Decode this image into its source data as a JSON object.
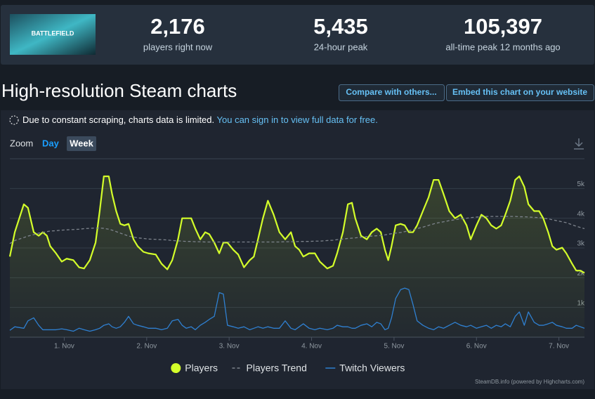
{
  "header": {
    "logo_text": "BATTLEFIELD",
    "stats": [
      {
        "value": "2,176",
        "label": "players right now"
      },
      {
        "value": "5,435",
        "label": "24-hour peak"
      },
      {
        "value": "105,397",
        "label": "all-time peak 12 months ago"
      }
    ]
  },
  "section_title": "High-resolution Steam charts",
  "buttons": [
    "Compare with others...",
    "Embed this chart on your website"
  ],
  "notice": {
    "text": "Due to constant scraping, charts data is limited.",
    "link": "You can sign in to view full data for free."
  },
  "zoom": {
    "label": "Zoom",
    "options": [
      "Day",
      "Week"
    ]
  },
  "chart_data": {
    "type": "line",
    "grid": true,
    "credit": "SteamDB.info (powered by Highcharts.com)",
    "x": [
      0.34,
      0.4,
      0.51,
      0.56,
      0.63,
      0.69,
      0.74,
      0.79,
      0.83,
      0.9,
      0.97,
      1.03,
      1.11,
      1.18,
      1.24,
      1.31,
      1.38,
      1.43,
      1.48,
      1.54,
      1.58,
      1.63,
      1.68,
      1.73,
      1.78,
      1.84,
      1.89,
      1.96,
      2.02,
      2.11,
      2.18,
      2.25,
      2.31,
      2.38,
      2.43,
      2.48,
      2.54,
      2.59,
      2.65,
      2.71,
      2.76,
      2.82,
      2.88,
      2.93,
      2.98,
      3.05,
      3.11,
      3.18,
      3.25,
      3.3,
      3.35,
      3.41,
      3.47,
      3.54,
      3.61,
      3.68,
      3.75,
      3.8,
      3.85,
      3.9,
      3.97,
      4.04,
      4.1,
      4.19,
      4.26,
      4.31,
      4.38,
      4.44,
      4.49,
      4.53,
      4.6,
      4.67,
      4.73,
      4.79,
      4.84,
      4.89,
      4.93,
      4.97,
      5.02,
      5.08,
      5.13,
      5.18,
      5.23,
      5.28,
      5.35,
      5.42,
      5.48,
      5.54,
      5.6,
      5.67,
      5.74,
      5.81,
      5.88,
      5.93,
      6.0,
      6.06,
      6.12,
      6.18,
      6.24,
      6.3,
      6.35,
      6.41,
      6.47,
      6.52,
      6.58,
      6.63,
      6.7,
      6.76,
      6.81,
      6.87,
      6.92,
      6.97,
      7.04,
      7.09,
      7.16,
      7.21,
      7.26,
      7.31
    ],
    "xlim": [
      0.34,
      7.31
    ],
    "xticks": [
      {
        "value": 1,
        "label": "1. Nov"
      },
      {
        "value": 2,
        "label": "2. Nov"
      },
      {
        "value": 3,
        "label": "3. Nov"
      },
      {
        "value": 4,
        "label": "4. Nov"
      },
      {
        "value": 5,
        "label": "5. Nov"
      },
      {
        "value": 6,
        "label": "6. Nov"
      },
      {
        "value": 7,
        "label": "7. Nov"
      }
    ],
    "ylim": [
      0,
      6000
    ],
    "yticks": [
      {
        "value": 1000,
        "label": "1k"
      },
      {
        "value": 2000,
        "label": "2k"
      },
      {
        "value": 3000,
        "label": "3k"
      },
      {
        "value": 4000,
        "label": "4k"
      },
      {
        "value": 5000,
        "label": "5k"
      }
    ],
    "series": [
      {
        "name": "Players",
        "color": "#d4ff2a",
        "area": true,
        "values": [
          2710,
          3530,
          4470,
          4350,
          3530,
          3410,
          3530,
          3410,
          3060,
          2820,
          2540,
          2640,
          2590,
          2350,
          2310,
          2590,
          3180,
          4240,
          5410,
          5410,
          4820,
          4240,
          3810,
          3760,
          3810,
          3290,
          3060,
          2870,
          2820,
          2780,
          2470,
          2280,
          2590,
          3290,
          4000,
          4000,
          4000,
          3650,
          3290,
          3530,
          3460,
          3180,
          2820,
          3180,
          3180,
          2940,
          2780,
          2350,
          2590,
          2710,
          3290,
          4000,
          4590,
          4120,
          3530,
          3290,
          3530,
          3060,
          2940,
          2710,
          2820,
          2820,
          2540,
          2310,
          2400,
          2820,
          3530,
          4470,
          4520,
          4000,
          3410,
          3290,
          3530,
          3650,
          3530,
          2940,
          2590,
          3060,
          3760,
          3810,
          3760,
          3530,
          3530,
          3760,
          4240,
          4710,
          5290,
          5290,
          4820,
          4240,
          4000,
          4120,
          3760,
          3290,
          3760,
          4120,
          4000,
          3760,
          3650,
          3760,
          4120,
          4590,
          5290,
          5410,
          5060,
          4470,
          4240,
          4240,
          4000,
          3530,
          3060,
          2940,
          3010,
          2820,
          2470,
          2240,
          2240,
          2160
        ]
      },
      {
        "name": "Players Trend",
        "color": "#7d838c",
        "dash": true,
        "values": [
          3150,
          3250,
          3350,
          3400,
          3450,
          3500,
          3520,
          3550,
          3570,
          3580,
          3600,
          3610,
          3620,
          3630,
          3650,
          3660,
          3670,
          3670,
          3660,
          3630,
          3600,
          3550,
          3500,
          3450,
          3400,
          3370,
          3340,
          3320,
          3300,
          3290,
          3280,
          3270,
          3250,
          3240,
          3230,
          3220,
          3220,
          3210,
          3210,
          3200,
          3200,
          3200,
          3200,
          3200,
          3200,
          3200,
          3200,
          3200,
          3200,
          3200,
          3200,
          3200,
          3200,
          3200,
          3200,
          3210,
          3210,
          3210,
          3220,
          3220,
          3220,
          3230,
          3230,
          3250,
          3260,
          3280,
          3300,
          3320,
          3330,
          3340,
          3360,
          3380,
          3400,
          3410,
          3420,
          3440,
          3460,
          3480,
          3500,
          3520,
          3550,
          3580,
          3610,
          3650,
          3700,
          3760,
          3810,
          3850,
          3880,
          3920,
          3950,
          3980,
          4000,
          4020,
          4040,
          4050,
          4060,
          4060,
          4060,
          4060,
          4060,
          4060,
          4060,
          4050,
          4050,
          4040,
          4030,
          4020,
          4000,
          3980,
          3950,
          3920,
          3880,
          3850,
          3780,
          3730,
          3690,
          3650
        ]
      },
      {
        "name": "Twitch Viewers",
        "color": "#2f80d1",
        "values": [
          230,
          350,
          300,
          550,
          650,
          400,
          250,
          250,
          250,
          250,
          280,
          250,
          200,
          300,
          250,
          200,
          250,
          300,
          400,
          450,
          350,
          300,
          350,
          500,
          700,
          450,
          400,
          350,
          300,
          300,
          250,
          300,
          550,
          600,
          400,
          300,
          350,
          250,
          400,
          500,
          600,
          700,
          1500,
          1450,
          400,
          350,
          300,
          350,
          250,
          300,
          350,
          300,
          350,
          300,
          300,
          550,
          300,
          250,
          350,
          450,
          300,
          250,
          300,
          250,
          300,
          400,
          350,
          350,
          300,
          300,
          400,
          450,
          350,
          500,
          450,
          250,
          300,
          650,
          1300,
          1600,
          1650,
          1600,
          1100,
          550,
          400,
          300,
          250,
          350,
          300,
          400,
          500,
          400,
          350,
          400,
          300,
          350,
          400,
          300,
          400,
          350,
          450,
          350,
          700,
          850,
          400,
          850,
          500,
          400,
          400,
          450,
          500,
          400,
          350,
          300,
          300,
          400,
          350,
          300
        ]
      }
    ]
  }
}
